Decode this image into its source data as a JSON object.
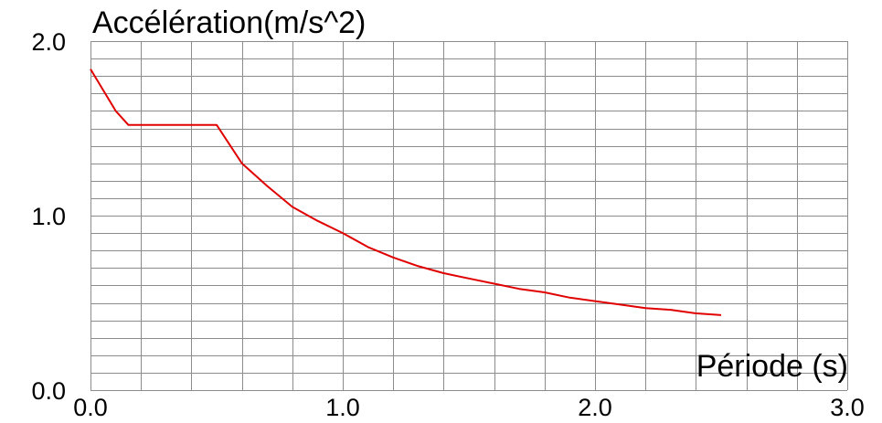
{
  "chart_data": {
    "type": "line",
    "ylabel": "Accélération(m/s^2)",
    "xlabel": "Période (s)",
    "xlim": [
      0,
      3
    ],
    "ylim": [
      0,
      2
    ],
    "x_ticks": [
      "0.0",
      "1.0",
      "2.0",
      "3.0"
    ],
    "y_ticks": [
      "0.0",
      "1.0",
      "2.0"
    ],
    "grid": true,
    "x_grid_step": 0.2,
    "y_grid_step": 0.1,
    "series": [
      {
        "color": "#e00000",
        "x": [
          0.0,
          0.05,
          0.1,
          0.15,
          0.2,
          0.3,
          0.4,
          0.5,
          0.6,
          0.7,
          0.8,
          0.9,
          1.0,
          1.1,
          1.2,
          1.3,
          1.4,
          1.5,
          1.6,
          1.7,
          1.8,
          1.9,
          2.0,
          2.1,
          2.2,
          2.3,
          2.4,
          2.5
        ],
        "y": [
          1.84,
          1.72,
          1.6,
          1.52,
          1.52,
          1.52,
          1.52,
          1.52,
          1.3,
          1.17,
          1.05,
          0.97,
          0.9,
          0.82,
          0.76,
          0.71,
          0.67,
          0.64,
          0.61,
          0.58,
          0.56,
          0.53,
          0.51,
          0.49,
          0.47,
          0.46,
          0.44,
          0.43
        ]
      }
    ]
  },
  "colors": {
    "grid": "#8c8c8c",
    "line": "#e00000"
  }
}
